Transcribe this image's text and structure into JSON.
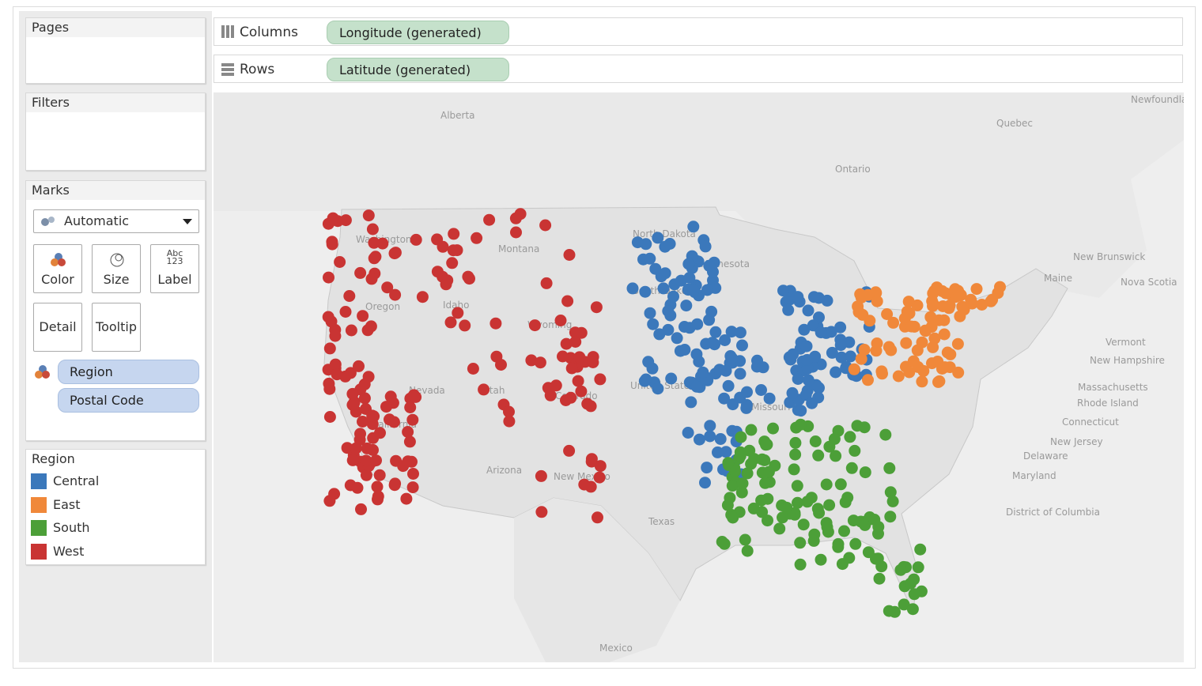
{
  "shelves": {
    "pages": "Pages",
    "filters": "Filters",
    "columns": {
      "label": "Columns",
      "pill": "Longitude (generated)"
    },
    "rows": {
      "label": "Rows",
      "pill": "Latitude (generated)"
    }
  },
  "marks": {
    "title": "Marks",
    "mark_type": "Automatic",
    "buttons": [
      "Color",
      "Size",
      "Label",
      "Detail",
      "Tooltip"
    ],
    "size_icon_text": "Abc\n123",
    "fields": [
      "Region",
      "Postal Code"
    ]
  },
  "legend": {
    "title": "Region",
    "items": [
      {
        "name": "Central",
        "color": "#3b78bb"
      },
      {
        "name": "East",
        "color": "#f0883a"
      },
      {
        "name": "South",
        "color": "#4c9f38"
      },
      {
        "name": "West",
        "color": "#c93433"
      }
    ]
  },
  "map": {
    "labels": [
      "Alberta",
      "Quebec",
      "Newfoundland and Labrador",
      "Ontario",
      "North Dakota",
      "Minnesota",
      "Montana",
      "Washington",
      "Oregon",
      "Idaho",
      "Wyoming",
      "South Dakota",
      "Nevada",
      "Utah",
      "Colorado",
      "California",
      "Arizona",
      "New Mexico",
      "Texas",
      "Missouri",
      "United States",
      "Mexico",
      "New Brunswick",
      "Nova Scotia",
      "Maine",
      "Vermont",
      "New Hampshire",
      "Massachusetts",
      "Rhode Island",
      "Connecticut",
      "New Jersey",
      "Delaware",
      "Maryland",
      "District of Columbia"
    ]
  }
}
